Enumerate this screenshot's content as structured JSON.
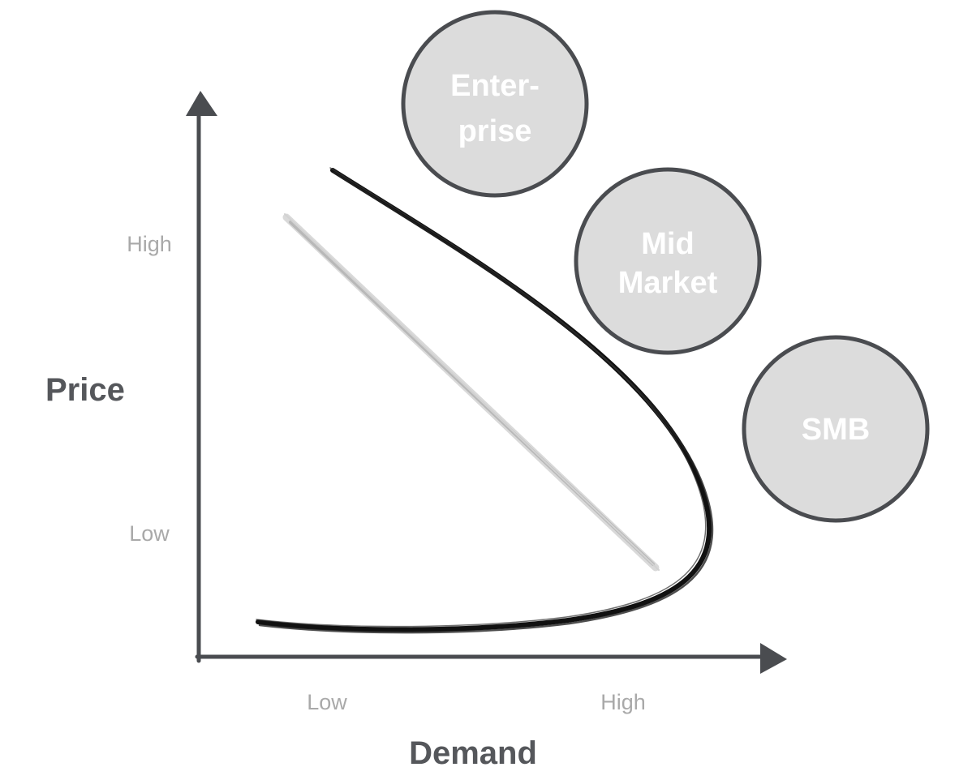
{
  "axes": {
    "y_title": "Price",
    "x_title": "Demand",
    "y_ticks": {
      "high": "High",
      "low": "Low"
    },
    "x_ticks": {
      "low": "Low",
      "high": "High"
    }
  },
  "segments": [
    {
      "id": "enterprise",
      "lines": [
        "Enter-",
        "prise"
      ]
    },
    {
      "id": "mid-market",
      "lines": [
        "Mid",
        "Market"
      ]
    },
    {
      "id": "smb",
      "lines": [
        "SMB"
      ]
    }
  ],
  "colors": {
    "axis": "#4a4c50",
    "tick_text": "#a9a9a9",
    "title_text": "#55575b",
    "circle_fill": "#dcdcdc",
    "circle_stroke": "#4a4c50",
    "curve": "#111111",
    "linear_line": "#bdbdbd"
  }
}
